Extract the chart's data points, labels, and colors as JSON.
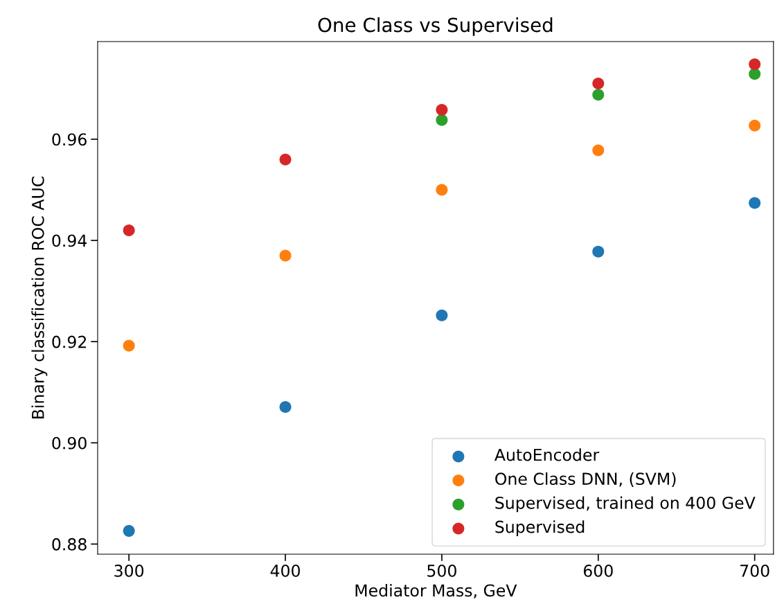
{
  "chart_data": {
    "type": "scatter",
    "title": "One Class vs Supervised",
    "xlabel": "Mediator Mass, GeV",
    "ylabel": "Binary classification ROC AUC",
    "x": [
      300,
      400,
      500,
      600,
      700
    ],
    "series": [
      {
        "name": "AutoEncoder",
        "color": "#1f77b4",
        "values": [
          0.8826,
          0.9071,
          0.9252,
          0.9378,
          0.9474
        ]
      },
      {
        "name": "One Class DNN, (SVM)",
        "color": "#ff7f0e",
        "values": [
          0.9192,
          0.937,
          0.95,
          0.9578,
          0.9627
        ]
      },
      {
        "name": "Supervised, trained on 400 GeV",
        "color": "#2ca02c",
        "values": [
          null,
          null,
          0.9638,
          0.9688,
          0.9729
        ]
      },
      {
        "name": "Supervised",
        "color": "#d62728",
        "values": [
          0.942,
          0.956,
          0.9658,
          0.971,
          0.9748
        ]
      }
    ],
    "xlim": [
      280,
      712
    ],
    "ylim": [
      0.878,
      0.9793
    ],
    "xticks": [
      300,
      400,
      500,
      600,
      700
    ],
    "yticks": [
      {
        "value": 0.88,
        "label": "0.88"
      },
      {
        "value": 0.9,
        "label": "0.90"
      },
      {
        "value": 0.92,
        "label": "0.92"
      },
      {
        "value": 0.94,
        "label": "0.94"
      },
      {
        "value": 0.96,
        "label": "0.96"
      }
    ],
    "legend": "lower right",
    "marker": "circle",
    "grid": false
  }
}
